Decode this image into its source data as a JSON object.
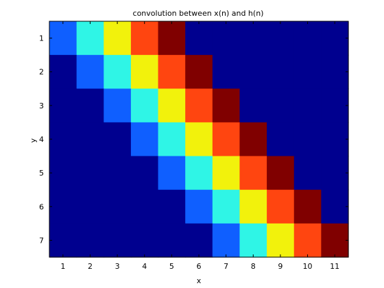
{
  "chart_data": {
    "type": "heatmap",
    "title": "convolution between x(n) and h(n)",
    "xlabel": "x",
    "ylabel": "y",
    "x_ticks": [
      "1",
      "2",
      "3",
      "4",
      "5",
      "6",
      "7",
      "8",
      "9",
      "10",
      "11"
    ],
    "y_ticks": [
      "1",
      "2",
      "3",
      "4",
      "5",
      "6",
      "7"
    ],
    "colormap": "jet",
    "clim": [
      0,
      5
    ],
    "colormap_colors": [
      "#00008f",
      "#0f5fff",
      "#2ff5e6",
      "#f2f20c",
      "#ff4510",
      "#800000"
    ],
    "matrix": [
      [
        1,
        2,
        3,
        4,
        5,
        0,
        0,
        0,
        0,
        0,
        0
      ],
      [
        0,
        1,
        2,
        3,
        4,
        5,
        0,
        0,
        0,
        0,
        0
      ],
      [
        0,
        0,
        1,
        2,
        3,
        4,
        5,
        0,
        0,
        0,
        0
      ],
      [
        0,
        0,
        0,
        1,
        2,
        3,
        4,
        5,
        0,
        0,
        0
      ],
      [
        0,
        0,
        0,
        0,
        1,
        2,
        3,
        4,
        5,
        0,
        0
      ],
      [
        0,
        0,
        0,
        0,
        0,
        1,
        2,
        3,
        4,
        5,
        0
      ],
      [
        0,
        0,
        0,
        0,
        0,
        0,
        1,
        2,
        3,
        4,
        5
      ]
    ]
  }
}
